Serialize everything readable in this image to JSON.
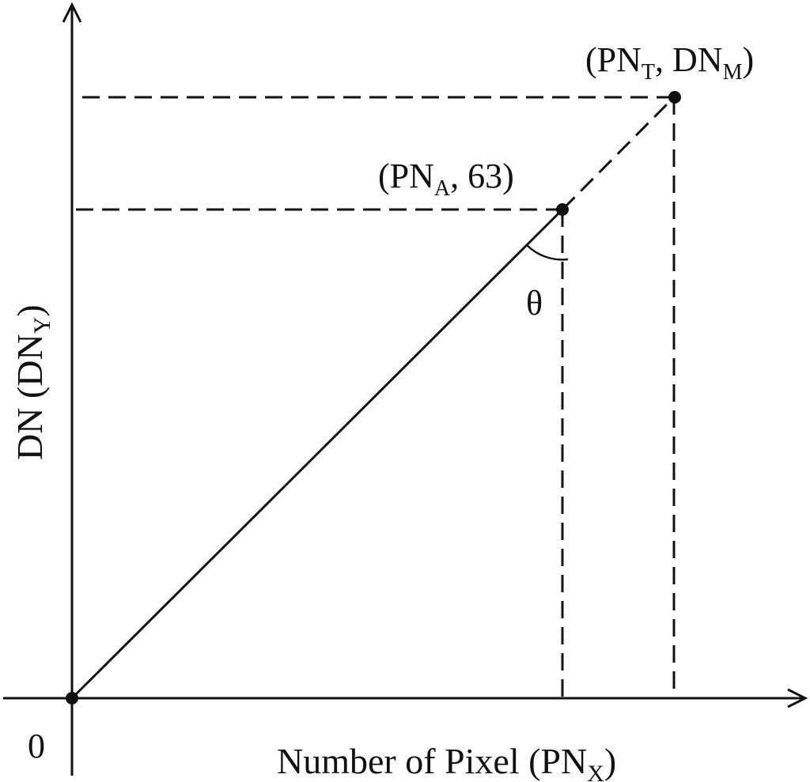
{
  "diagram": {
    "axes": {
      "x_label": "Number of Pixel (PN",
      "x_label_sub": "X",
      "x_label_close": ")",
      "y_label": "DN (DN",
      "y_label_sub": "Y",
      "y_label_close": ")",
      "origin_label": "0"
    },
    "points": {
      "a": {
        "label_open": "(PN",
        "label_sub": "A",
        "label_rest": ", 63)"
      },
      "t": {
        "label_open": "(PN",
        "label_sub": "T",
        "label_mid": ", DN",
        "label_sub2": "M",
        "label_close": ")"
      }
    },
    "angle_label": "θ"
  },
  "colors": {
    "ink": "#111111",
    "background": "#ffffff"
  }
}
